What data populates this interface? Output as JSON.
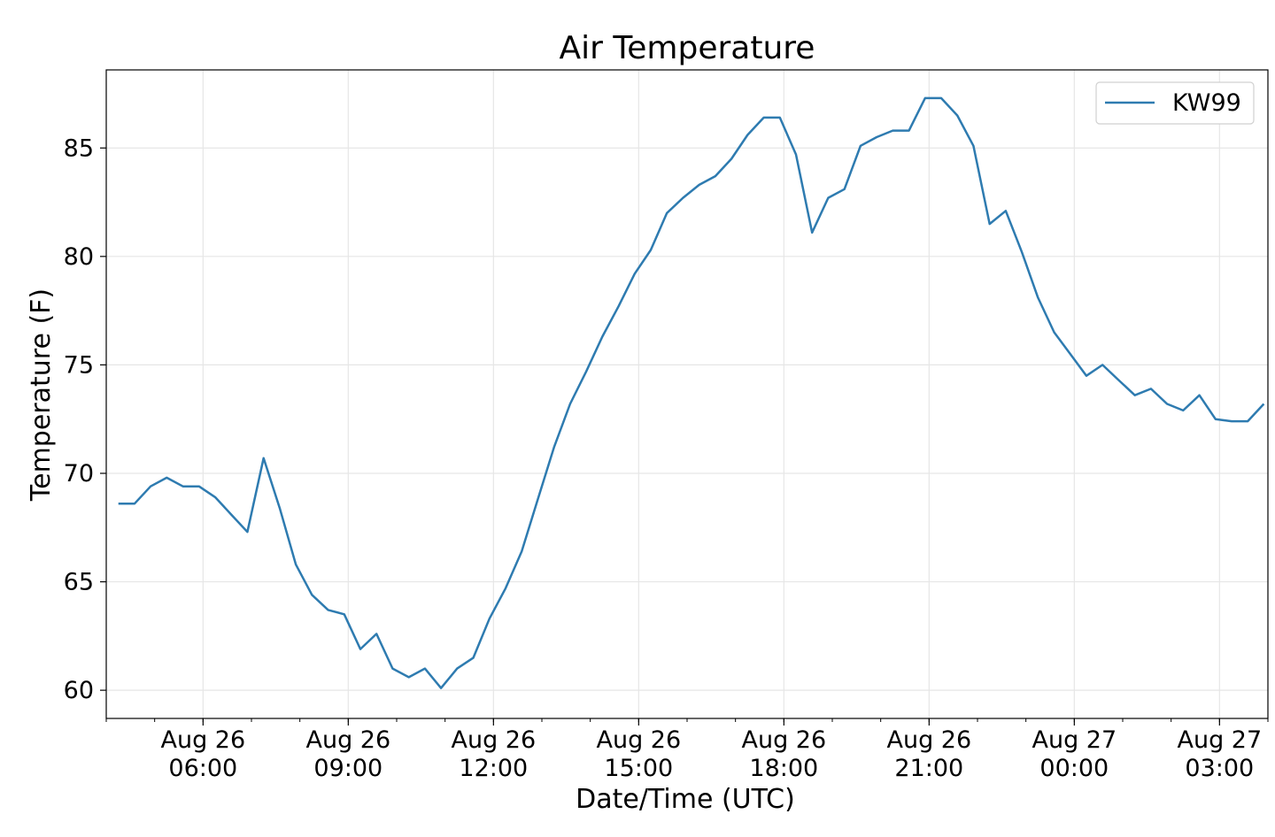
{
  "chart_data": {
    "type": "line",
    "title": "Air Temperature",
    "xlabel": "Date/Time (UTC)",
    "ylabel": "Temperature (F)",
    "xlim": [
      "2023-08-26T04:00",
      "2023-08-27T04:00"
    ],
    "ylim": [
      58.7,
      88.6
    ],
    "grid": true,
    "legend_position": "top-right",
    "line_color": "#2e7bb0",
    "y_ticks": [
      60,
      65,
      70,
      75,
      80,
      85
    ],
    "x_ticks": [
      {
        "t": "2023-08-26T06:00",
        "line1": "Aug 26",
        "line2": "06:00"
      },
      {
        "t": "2023-08-26T09:00",
        "line1": "Aug 26",
        "line2": "09:00"
      },
      {
        "t": "2023-08-26T12:00",
        "line1": "Aug 26",
        "line2": "12:00"
      },
      {
        "t": "2023-08-26T15:00",
        "line1": "Aug 26",
        "line2": "15:00"
      },
      {
        "t": "2023-08-26T18:00",
        "line1": "Aug 26",
        "line2": "18:00"
      },
      {
        "t": "2023-08-26T21:00",
        "line1": "Aug 26",
        "line2": "21:00"
      },
      {
        "t": "2023-08-27T00:00",
        "line1": "Aug 27",
        "line2": "00:00"
      },
      {
        "t": "2023-08-27T03:00",
        "line1": "Aug 27",
        "line2": "03:00"
      }
    ],
    "series": [
      {
        "name": "KW99",
        "x": [
          "2023-08-26T04:15",
          "2023-08-26T04:35",
          "2023-08-26T04:55",
          "2023-08-26T05:15",
          "2023-08-26T05:35",
          "2023-08-26T05:55",
          "2023-08-26T06:15",
          "2023-08-26T06:35",
          "2023-08-26T06:55",
          "2023-08-26T07:15",
          "2023-08-26T07:35",
          "2023-08-26T07:55",
          "2023-08-26T08:15",
          "2023-08-26T08:35",
          "2023-08-26T08:55",
          "2023-08-26T09:15",
          "2023-08-26T09:35",
          "2023-08-26T09:55",
          "2023-08-26T10:15",
          "2023-08-26T10:35",
          "2023-08-26T10:55",
          "2023-08-26T11:15",
          "2023-08-26T11:35",
          "2023-08-26T11:55",
          "2023-08-26T12:15",
          "2023-08-26T12:35",
          "2023-08-26T12:55",
          "2023-08-26T13:15",
          "2023-08-26T13:35",
          "2023-08-26T13:55",
          "2023-08-26T14:15",
          "2023-08-26T14:35",
          "2023-08-26T14:55",
          "2023-08-26T15:15",
          "2023-08-26T15:35",
          "2023-08-26T15:55",
          "2023-08-26T16:15",
          "2023-08-26T16:35",
          "2023-08-26T16:55",
          "2023-08-26T17:15",
          "2023-08-26T17:35",
          "2023-08-26T17:55",
          "2023-08-26T18:15",
          "2023-08-26T18:35",
          "2023-08-26T18:55",
          "2023-08-26T19:15",
          "2023-08-26T19:35",
          "2023-08-26T19:55",
          "2023-08-26T20:15",
          "2023-08-26T20:35",
          "2023-08-26T20:55",
          "2023-08-26T21:15",
          "2023-08-26T21:35",
          "2023-08-26T21:55",
          "2023-08-26T22:15",
          "2023-08-26T22:35",
          "2023-08-26T22:55",
          "2023-08-26T23:15",
          "2023-08-26T23:35",
          "2023-08-26T23:55",
          "2023-08-27T00:15",
          "2023-08-27T00:35",
          "2023-08-27T00:55",
          "2023-08-27T01:15",
          "2023-08-27T01:35",
          "2023-08-27T01:55",
          "2023-08-27T02:15",
          "2023-08-27T02:35",
          "2023-08-27T02:55",
          "2023-08-27T03:15",
          "2023-08-27T03:35",
          "2023-08-27T03:55"
        ],
        "y": [
          68.6,
          68.6,
          69.4,
          69.8,
          69.4,
          69.4,
          68.9,
          68.1,
          67.3,
          70.7,
          68.4,
          65.8,
          64.4,
          63.7,
          63.5,
          61.9,
          62.6,
          61.0,
          60.6,
          61.0,
          60.1,
          61.0,
          61.5,
          63.3,
          64.7,
          66.4,
          68.8,
          71.2,
          73.2,
          74.7,
          76.3,
          77.7,
          79.2,
          80.3,
          82.0,
          82.7,
          83.3,
          83.7,
          84.5,
          85.6,
          86.4,
          86.4,
          84.7,
          81.1,
          82.7,
          83.1,
          85.1,
          85.5,
          85.8,
          85.8,
          87.3,
          87.3,
          86.5,
          85.1,
          81.5,
          82.1,
          80.2,
          78.1,
          76.5,
          75.5,
          74.5,
          75.0,
          74.3,
          73.6,
          73.9,
          73.2,
          72.9,
          73.6,
          72.5,
          72.4,
          72.4,
          73.2
        ]
      }
    ]
  }
}
